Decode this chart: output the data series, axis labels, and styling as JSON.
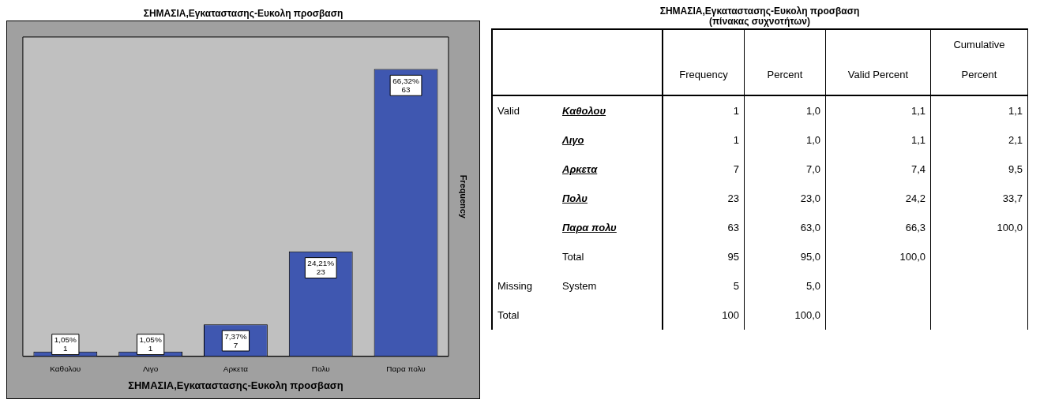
{
  "chart_data": [
    {
      "type": "bar",
      "title": "ΣΗΜΑΣΙΑ,Εγκαταστασης-Ευκολη προσβαση",
      "xlabel": "ΣΗΜΑΣΙΑ,Εγκαταστασης-Ευκολη προσβαση",
      "ylabel": "Frequency",
      "categories": [
        "Καθολου",
        "Λιγο",
        "Αρκετα",
        "Πολυ",
        "Παρα πολυ"
      ],
      "values": [
        1,
        1,
        7,
        23,
        63
      ],
      "color": "#3f57b0",
      "value_labels": [
        "1,05%\n1",
        "1,05%\n1",
        "7,37%\n7",
        "24,21%\n23",
        "66,32%\n63"
      ],
      "grid": false,
      "legend": false
    },
    {
      "type": "other",
      "title": "ΣΗΜΑΣΙΑ,Εγκαταστασης-Ευκολη προσβαση",
      "subtitle": "(πίνακας συχνοτήτων)",
      "categories": [
        "Frequency",
        "Percent",
        "Valid Percent",
        "Cumulative Percent"
      ],
      "y2_categories": [
        "Valid",
        null,
        null,
        null,
        null,
        null,
        "Missing",
        "Total"
      ],
      "y_categories": [
        "Καθολου",
        "Λιγο",
        "Αρκετα",
        "Πολυ",
        "Παρα πολυ",
        "Total",
        "System",
        null
      ],
      "cell_labels": [
        [
          "1",
          "1,0",
          "1,1",
          "1,1"
        ],
        [
          "1",
          "1,0",
          "1,1",
          "2,1"
        ],
        [
          "7",
          "7,0",
          "7,4",
          "9,5"
        ],
        [
          "23",
          "23,0",
          "24,2",
          "33,7"
        ],
        [
          "63",
          "63,0",
          "66,3",
          "100,0"
        ],
        [
          "95",
          "95,0",
          "100,0",
          null
        ],
        [
          "5",
          "5,0",
          null,
          null
        ],
        [
          "100",
          "100,0",
          null,
          null
        ]
      ]
    }
  ]
}
